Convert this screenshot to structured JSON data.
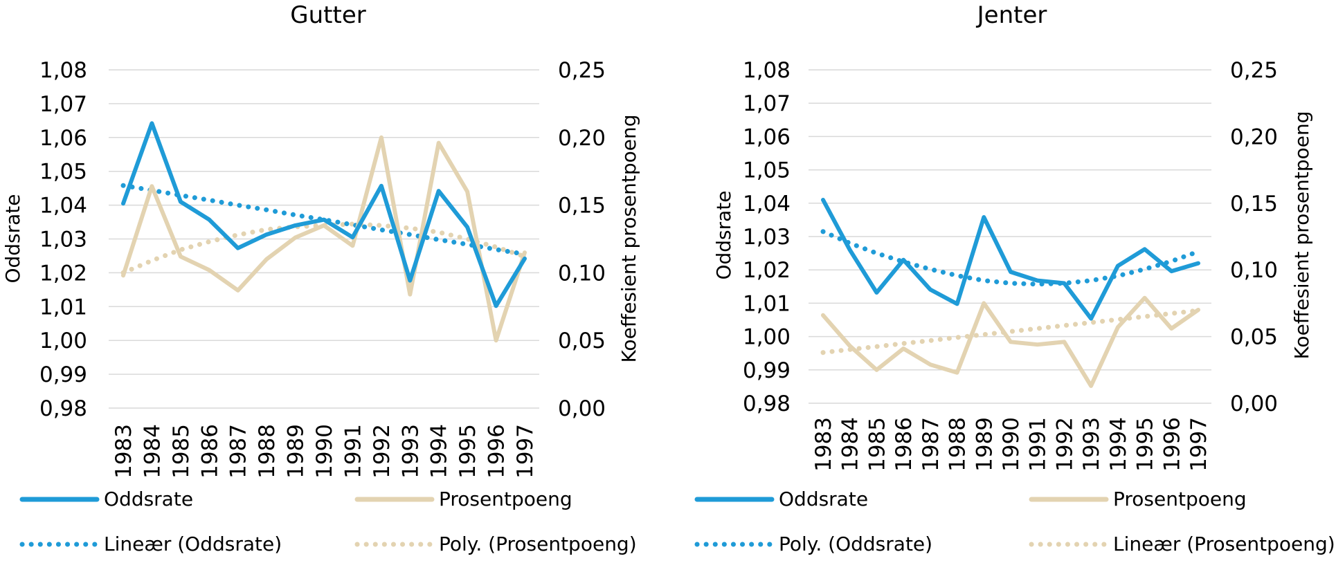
{
  "colors": {
    "oddsrate": "#1f9bd7",
    "prosentpoeng": "#e3d3b1",
    "grid": "#d9d9d9"
  },
  "chart_data": [
    {
      "type": "line",
      "title": "Gutter",
      "categories": [
        "1983",
        "1984",
        "1985",
        "1986",
        "1987",
        "1988",
        "1989",
        "1990",
        "1991",
        "1992",
        "1993",
        "1994",
        "1995",
        "1996",
        "1997"
      ],
      "ylabel": "Oddsrate",
      "y2label": "Koeffesient prosentpoeng",
      "ylim": [
        0.98,
        1.08
      ],
      "y2lim": [
        0.0,
        0.25
      ],
      "yticks": [
        "1,08",
        "1,07",
        "1,06",
        "1,05",
        "1,04",
        "1,03",
        "1,02",
        "1,01",
        "1,00",
        "0,99",
        "0,98"
      ],
      "y2ticks": [
        "0,25",
        "0,20",
        "0,15",
        "0,10",
        "0,05",
        "0,00"
      ],
      "series": [
        {
          "name": "Oddsrate",
          "axis": "left",
          "style": "solid",
          "color": "#1f9bd7",
          "values": [
            1.0405,
            1.0642,
            1.041,
            1.0357,
            1.0273,
            1.0313,
            1.034,
            1.0357,
            1.0305,
            1.0457,
            1.0177,
            1.0442,
            1.0335,
            1.0102,
            1.0242
          ]
        },
        {
          "name": "Prosentpoeng",
          "axis": "right",
          "style": "solid",
          "color": "#e3d3b1",
          "values": [
            0.098,
            0.164,
            0.112,
            0.102,
            0.087,
            0.11,
            0.126,
            0.135,
            0.12,
            0.2,
            0.084,
            0.196,
            0.16,
            0.05,
            0.115
          ]
        },
        {
          "name": "Lineær (Oddsrate)",
          "axis": "left",
          "style": "dotted",
          "color": "#1f9bd7",
          "values": [
            1.0458,
            1.0444,
            1.0429,
            1.0415,
            1.04,
            1.0386,
            1.0371,
            1.0357,
            1.0342,
            1.0327,
            1.0313,
            1.0298,
            1.0284,
            1.0269,
            1.0255
          ]
        },
        {
          "name": "Poly. (Prosentpoeng)",
          "axis": "right",
          "style": "dotted",
          "color": "#e3d3b1",
          "values": [
            0.1,
            0.109,
            0.117,
            0.123,
            0.128,
            0.132,
            0.134,
            0.135,
            0.136,
            0.135,
            0.133,
            0.13,
            0.125,
            0.119,
            0.112
          ]
        }
      ],
      "legend": [
        "Oddsrate",
        "Prosentpoeng",
        "Lineær (Oddsrate)",
        "Poly. (Prosentpoeng)"
      ]
    },
    {
      "type": "line",
      "title": "Jenter",
      "categories": [
        "1983",
        "1984",
        "1985",
        "1986",
        "1987",
        "1988",
        "1989",
        "1990",
        "1991",
        "1992",
        "1993",
        "1994",
        "1995",
        "1996",
        "1997"
      ],
      "ylabel": "Oddsrate",
      "y2label": "Koeffesient prosentpoeng",
      "ylim": [
        0.98,
        1.08
      ],
      "y2lim": [
        0.0,
        0.25
      ],
      "yticks": [
        "1,08",
        "1,07",
        "1,06",
        "1,05",
        "1,04",
        "1,03",
        "1,02",
        "1,01",
        "1,00",
        "0,99",
        "0,98"
      ],
      "y2ticks": [
        "0,25",
        "0,20",
        "0,15",
        "0,10",
        "0,05",
        "0,00"
      ],
      "series": [
        {
          "name": "Oddsrate",
          "axis": "left",
          "style": "solid",
          "color": "#1f9bd7",
          "values": [
            1.041,
            1.026,
            1.0132,
            1.023,
            1.0141,
            1.0098,
            1.0358,
            1.0194,
            1.0168,
            1.016,
            1.0054,
            1.0212,
            1.0262,
            1.0196,
            1.022
          ]
        },
        {
          "name": "Prosentpoeng",
          "axis": "right",
          "style": "solid",
          "color": "#e3d3b1",
          "values": [
            0.066,
            0.043,
            0.025,
            0.041,
            0.029,
            0.023,
            0.075,
            0.046,
            0.044,
            0.046,
            0.013,
            0.057,
            0.079,
            0.056,
            0.07
          ]
        },
        {
          "name": "Poly. (Oddsrate)",
          "axis": "left",
          "style": "dotted",
          "color": "#1f9bd7",
          "values": [
            1.0315,
            1.028,
            1.025,
            1.0224,
            1.0202,
            1.0183,
            1.0168,
            1.016,
            1.0157,
            1.016,
            1.0168,
            1.0182,
            1.0202,
            1.0226,
            1.0255
          ]
        },
        {
          "name": "Lineær (Prosentpoeng)",
          "axis": "right",
          "style": "dotted",
          "color": "#e3d3b1",
          "values": [
            0.038,
            0.0403,
            0.0425,
            0.0448,
            0.047,
            0.0493,
            0.0515,
            0.0538,
            0.056,
            0.0583,
            0.0605,
            0.0628,
            0.065,
            0.0673,
            0.0695
          ]
        }
      ],
      "legend": [
        "Oddsrate",
        "Prosentpoeng",
        "Poly. (Oddsrate)",
        "Lineær (Prosentpoeng)"
      ]
    }
  ]
}
